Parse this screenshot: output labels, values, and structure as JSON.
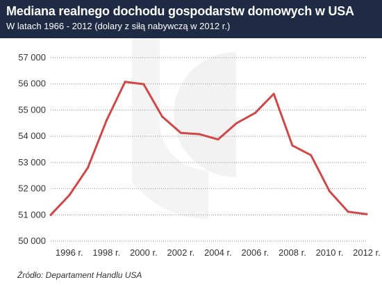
{
  "header": {
    "title": "Mediana realnego dochodu gospodarstw domowych w USA",
    "subtitle": "W latach 1966 - 2012 (dolary z siłą nabywczą w 2012 r.)"
  },
  "source": "Źródło: Departament Handlu USA",
  "colors": {
    "header_bg": "#1f2b44",
    "line": "#d24646",
    "grid": "#8a8a8a",
    "watermark": "#f2f2f2"
  },
  "chart_data": {
    "type": "line",
    "title": "Mediana realnego dochodu gospodarstw domowych w USA",
    "subtitle": "W latach 1966 - 2012 (dolary z siłą nabywczą w 2012 r.)",
    "xlabel": "",
    "ylabel": "",
    "x": [
      1995,
      1996,
      1997,
      1998,
      1999,
      2000,
      2001,
      2002,
      2003,
      2004,
      2005,
      2006,
      2007,
      2008,
      2009,
      2010,
      2011,
      2012
    ],
    "series": [
      {
        "values": [
          51000,
          51750,
          52800,
          54600,
          56080,
          55990,
          54750,
          54130,
          54080,
          53880,
          54500,
          54890,
          55620,
          53650,
          53280,
          51900,
          51120,
          51030
        ]
      }
    ],
    "x_tick_labels": [
      "1996 r.",
      "1998 r.",
      "2000 r.",
      "2002 r.",
      "2004 r.",
      "2006 r.",
      "2008 r.",
      "2010 r.",
      "2012 r."
    ],
    "x_ticks": [
      1996,
      1998,
      2000,
      2002,
      2004,
      2006,
      2008,
      2010,
      2012
    ],
    "y_tick_labels": [
      "50 000",
      "51 000",
      "52 000",
      "53 000",
      "54 000",
      "55 000",
      "56 000",
      "57 000"
    ],
    "y_ticks": [
      50000,
      51000,
      52000,
      53000,
      54000,
      55000,
      56000,
      57000
    ],
    "ylim": [
      50000,
      57000
    ],
    "xlim": [
      1995,
      2012
    ],
    "grid": "horizontal dotted",
    "legend": "none"
  }
}
